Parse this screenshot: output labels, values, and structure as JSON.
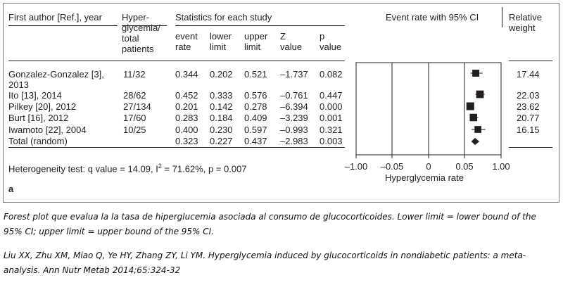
{
  "headers": {
    "author": "First author [Ref.], year",
    "hyper": [
      "Hyper-",
      "glycemia/",
      "total",
      "patients"
    ],
    "stats_group": "Statistics for each study",
    "event": [
      "event",
      "rate"
    ],
    "lower": [
      "lower",
      "limit"
    ],
    "upper": [
      "upper",
      "limit"
    ],
    "z": [
      "Z",
      "value"
    ],
    "p": [
      "p",
      "value"
    ],
    "ci_title": "Event rate with 95% CI",
    "weight": [
      "Relative",
      "weight"
    ]
  },
  "rows": [
    {
      "author": [
        "Gonzalez-Gonzalez [3],",
        "2013"
      ],
      "hyper": "11/32",
      "event": "0.344",
      "lower": "0.202",
      "upper": "0.521",
      "z": "–1.737",
      "p": "0.082",
      "weight": "17.44"
    },
    {
      "author": [
        "Ito [13], 2014"
      ],
      "hyper": "28/62",
      "event": "0.452",
      "lower": "0.333",
      "upper": "0.576",
      "z": "–0.761",
      "p": "0.447",
      "weight": "22.03"
    },
    {
      "author": [
        "Pilkey [20], 2012"
      ],
      "hyper": "27/134",
      "event": "0.201",
      "lower": "0.142",
      "upper": "0.278",
      "z": "–6.394",
      "p": "0.000",
      "weight": "23.62"
    },
    {
      "author": [
        "Burt [16], 2012"
      ],
      "hyper": "17/60",
      "event": "0.283",
      "lower": "0.184",
      "upper": "0.409",
      "z": "–3.239",
      "p": "0.001",
      "weight": "20.77"
    },
    {
      "author": [
        "Iwamoto [22], 2004"
      ],
      "hyper": "10/25",
      "event": "0.400",
      "lower": "0.230",
      "upper": "0.597",
      "z": "–0.993",
      "p": "0.321",
      "weight": "16.15"
    },
    {
      "author": [
        "Total (random)"
      ],
      "hyper": "",
      "event": "0.323",
      "lower": "0.227",
      "upper": "0.437",
      "z": "–2.983",
      "p": "0.003",
      "weight": ""
    }
  ],
  "heterogeneity": {
    "prefix": "Heterogeneity test: q value = 14.09, I",
    "sup": "2",
    "suffix": " = 71.62%, p = 0.007"
  },
  "panel_label": "a",
  "caption": {
    "line1": "Forest plot que evalua la la tasa de hiperglucemia asociada al consumo de glucocorticoides. Lower limit = lower bound of the",
    "line2": "95% CI; upper limit = upper bound of the 95% CI.",
    "line3": "Liu XX, Zhu XM, Miao Q, Ye HY, Zhang ZY, Li YM. Hyperglycemia induced by glucocorticoids in nondiabetic patients: a meta-",
    "line4": "analysis. Ann Nutr Metab 2014;65:324-32"
  },
  "chart_data": {
    "type": "forest",
    "xlabel": "Hyperglycemia rate",
    "x_ticks": [
      "–1.00",
      "–0.05",
      "0",
      "0.05",
      "1.00"
    ],
    "studies": [
      {
        "label": "Gonzalez-Gonzalez [3], 2013",
        "estimate": 0.344,
        "lower": 0.202,
        "upper": 0.521,
        "weight": 17.44
      },
      {
        "label": "Ito [13], 2014",
        "estimate": 0.452,
        "lower": 0.333,
        "upper": 0.576,
        "weight": 22.03
      },
      {
        "label": "Pilkey [20], 2012",
        "estimate": 0.201,
        "lower": 0.142,
        "upper": 0.278,
        "weight": 23.62
      },
      {
        "label": "Burt [16], 2012",
        "estimate": 0.283,
        "lower": 0.184,
        "upper": 0.409,
        "weight": 20.77
      },
      {
        "label": "Iwamoto [22], 2004",
        "estimate": 0.4,
        "lower": 0.23,
        "upper": 0.597,
        "weight": 16.15
      }
    ],
    "summary": {
      "label": "Total (random)",
      "estimate": 0.323,
      "lower": 0.227,
      "upper": 0.437
    }
  }
}
